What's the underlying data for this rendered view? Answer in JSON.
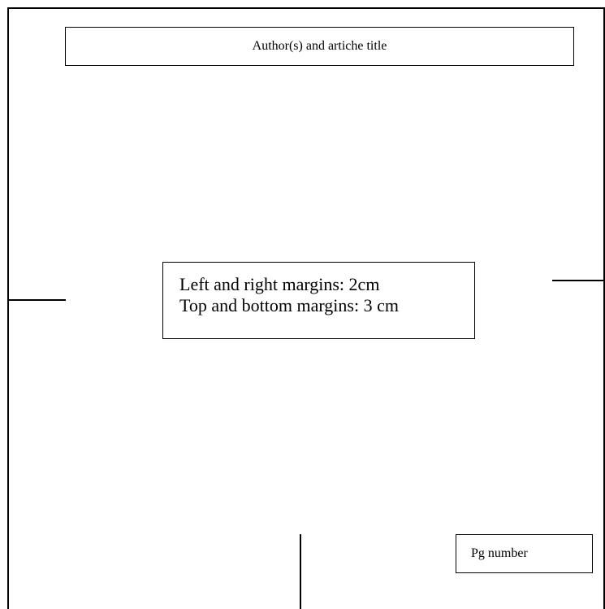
{
  "header": {
    "text": "Author(s) and artiche title"
  },
  "margins_note": {
    "line1": "Left and right margins: 2cm",
    "line2": "Top and bottom margins: 3 cm"
  },
  "footer": {
    "page_number_label": "Pg number"
  }
}
